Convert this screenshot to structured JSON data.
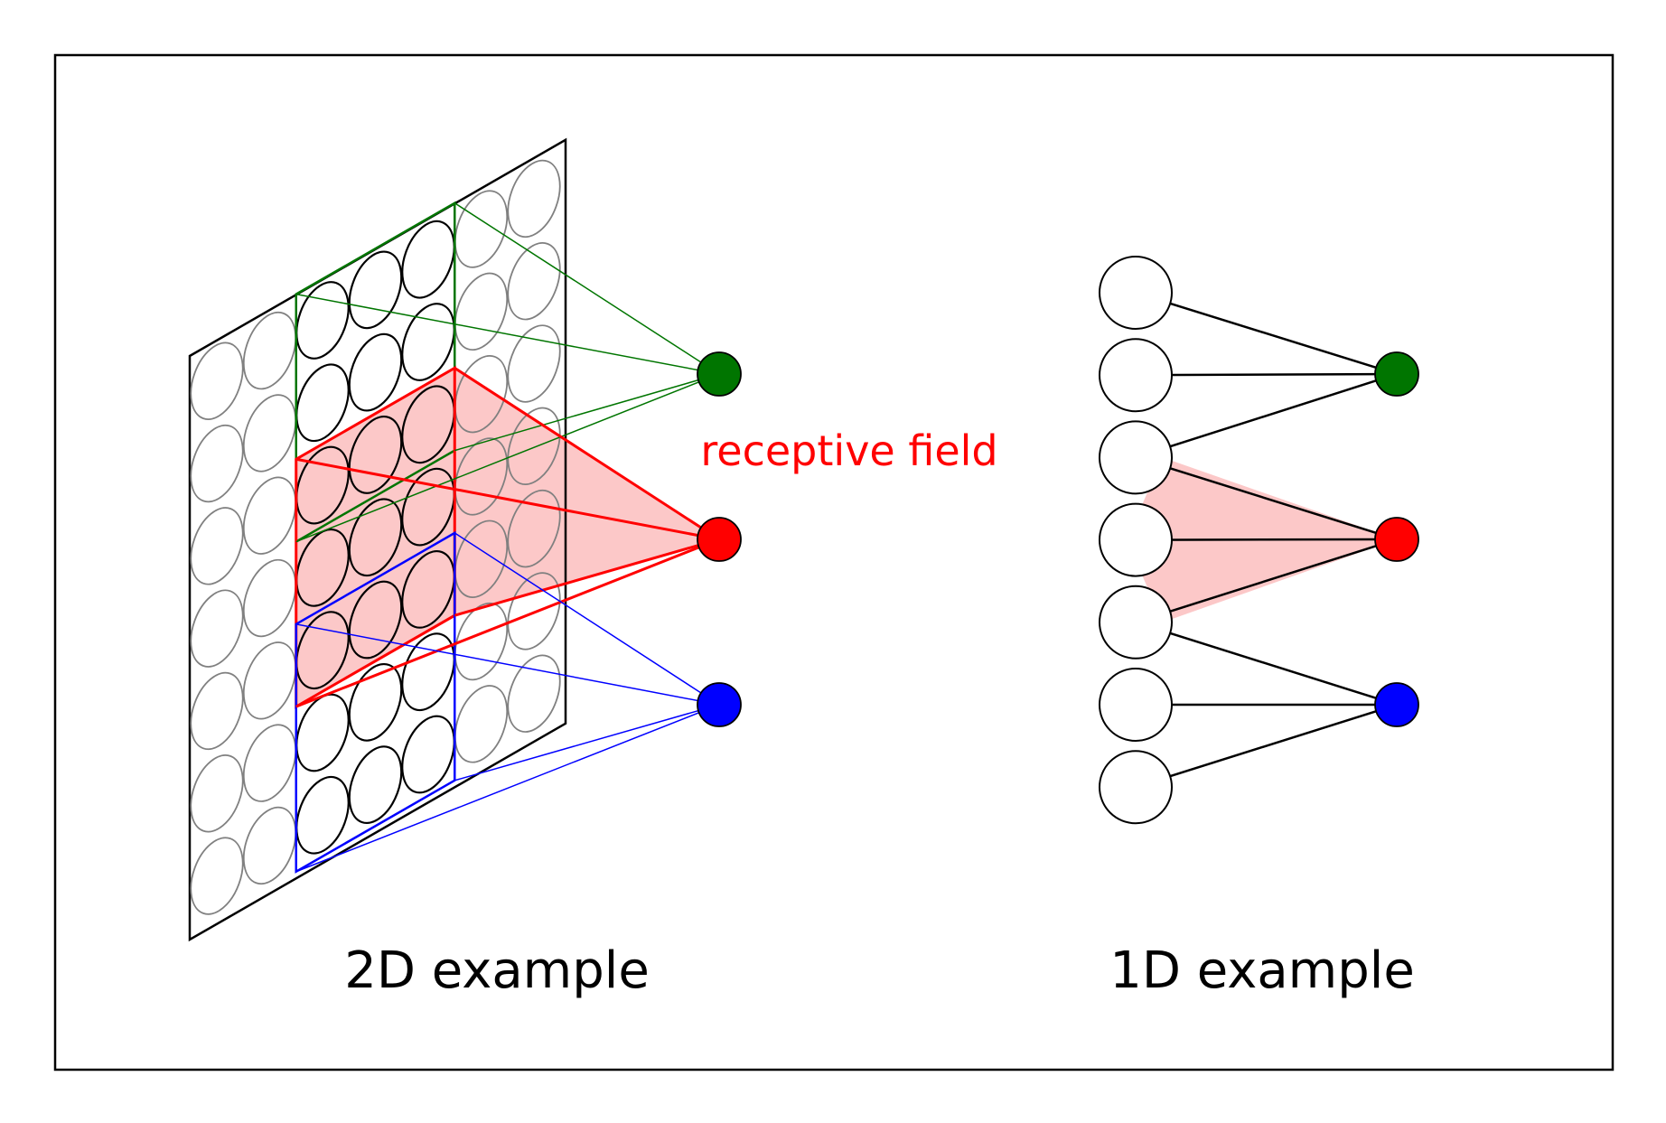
{
  "labels": {
    "left_caption": "2D example",
    "right_caption": "1D example",
    "receptive_field": "receptive field"
  },
  "colors": {
    "background": "#ffffff",
    "frame": "#000000",
    "input_unit_inactive": "#808080",
    "input_unit_active": "#000000",
    "receptive_fill": "#fcc8c8",
    "output_top": "#007500",
    "output_middle": "#ff0000",
    "output_bottom": "#0000ff",
    "label_highlight": "#ff0000"
  },
  "grid_2d": {
    "rows": 7,
    "cols": 7,
    "active_col_range": [
      2,
      4
    ],
    "regions": [
      {
        "name": "green",
        "row_range": [
          0,
          2
        ],
        "output": "top"
      },
      {
        "name": "red",
        "row_range": [
          2,
          4
        ],
        "output": "middle",
        "filled": true
      },
      {
        "name": "blue",
        "row_range": [
          4,
          6
        ],
        "output": "bottom"
      }
    ]
  },
  "layer_1d": {
    "input_count": 7,
    "connections": [
      {
        "output": "top",
        "inputs": [
          0,
          1,
          2
        ]
      },
      {
        "output": "middle",
        "inputs": [
          2,
          3,
          4
        ],
        "filled": true
      },
      {
        "output": "bottom",
        "inputs": [
          4,
          5,
          6
        ]
      }
    ]
  }
}
